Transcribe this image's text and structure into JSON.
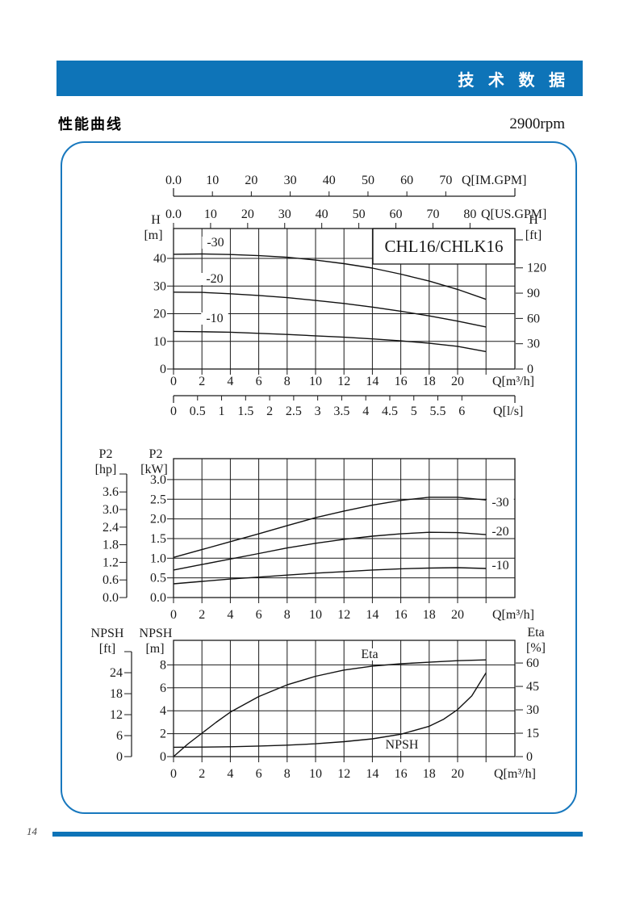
{
  "page": {
    "banner_title": "技 术 数 据",
    "section_title": "性能曲线",
    "speed": "2900rpm",
    "page_number": "14"
  },
  "chart_data": [
    {
      "type": "line",
      "title": "CHL16/CHLK16",
      "x_axis": {
        "unit": "Q[m³/h]",
        "ticks": [
          "0",
          "2",
          "4",
          "6",
          "8",
          "10",
          "12",
          "14",
          "16",
          "18",
          "20"
        ],
        "grid": [
          2,
          4,
          6,
          8,
          10,
          12,
          14,
          16,
          18,
          20,
          22
        ],
        "range": [
          0,
          24
        ]
      },
      "y_axis": {
        "name": "H",
        "unit": "[m]",
        "ticks": [
          "0",
          "10",
          "20",
          "30",
          "40"
        ],
        "grid": [
          10,
          20,
          30,
          40
        ],
        "range": [
          0,
          50.8
        ]
      },
      "right_axis": {
        "name": "H",
        "unit": "[ft]",
        "ticks": [
          "0",
          "30",
          "60",
          "90",
          "120"
        ]
      },
      "im_axis": {
        "unit": "Q[IM.GPM]",
        "ticks": [
          "0.0",
          "10",
          "20",
          "30",
          "40",
          "50",
          "60",
          "70"
        ]
      },
      "us_axis": {
        "unit": "Q[US.GPM]",
        "ticks": [
          "0.0",
          "10",
          "20",
          "30",
          "40",
          "50",
          "60",
          "70",
          "80"
        ]
      },
      "ls_axis": {
        "unit": "Q[l/s]",
        "ticks": [
          "0",
          "0.5",
          "1",
          "1.5",
          "2",
          "2.5",
          "3",
          "3.5",
          "4",
          "4.5",
          "5",
          "5.5",
          "6"
        ]
      },
      "series": [
        {
          "name": "-30",
          "points": [
            [
              0,
              41.5
            ],
            [
              2,
              41.6
            ],
            [
              4,
              41.4
            ],
            [
              6,
              41.0
            ],
            [
              8,
              40.4
            ],
            [
              10,
              39.4
            ],
            [
              12,
              38.1
            ],
            [
              14,
              36.5
            ],
            [
              16,
              34.3
            ],
            [
              18,
              31.8
            ],
            [
              20,
              28.8
            ],
            [
              22,
              25.2
            ]
          ]
        },
        {
          "name": "-20",
          "points": [
            [
              0,
              27.8
            ],
            [
              2,
              27.7
            ],
            [
              4,
              27.2
            ],
            [
              6,
              26.6
            ],
            [
              8,
              25.8
            ],
            [
              10,
              24.8
            ],
            [
              12,
              23.7
            ],
            [
              14,
              22.4
            ],
            [
              16,
              20.9
            ],
            [
              18,
              19.2
            ],
            [
              20,
              17.3
            ],
            [
              22,
              15.2
            ]
          ]
        },
        {
          "name": "-10",
          "points": [
            [
              0,
              13.6
            ],
            [
              2,
              13.5
            ],
            [
              4,
              13.3
            ],
            [
              6,
              12.9
            ],
            [
              8,
              12.5
            ],
            [
              10,
              12.0
            ],
            [
              12,
              11.5
            ],
            [
              14,
              10.9
            ],
            [
              16,
              10.2
            ],
            [
              18,
              9.3
            ],
            [
              20,
              8.2
            ],
            [
              22,
              6.3
            ]
          ]
        }
      ]
    },
    {
      "type": "line",
      "x_axis": {
        "unit": "Q[m³/h]",
        "ticks": [
          "0",
          "2",
          "4",
          "6",
          "8",
          "10",
          "12",
          "14",
          "16",
          "18",
          "20"
        ],
        "grid": [
          2,
          4,
          6,
          8,
          10,
          12,
          14,
          16,
          18,
          20,
          22
        ],
        "range": [
          0,
          24
        ]
      },
      "y_axis": {
        "name": "P2",
        "unit": "[kW]",
        "ticks": [
          "0.0",
          "0.5",
          "1.0",
          "1.5",
          "2.0",
          "2.5",
          "3.0"
        ],
        "grid": [
          0.5,
          1,
          1.5,
          2,
          2.5,
          3
        ],
        "range": [
          0,
          3.53
        ]
      },
      "hp_axis": {
        "name": "P2",
        "unit": "[hp]",
        "ticks": [
          "0.0",
          "0.6",
          "1.2",
          "1.8",
          "2.4",
          "3.0",
          "3.6"
        ]
      },
      "series": [
        {
          "name": "-30",
          "points": [
            [
              0,
              1.02
            ],
            [
              2,
              1.22
            ],
            [
              4,
              1.42
            ],
            [
              6,
              1.62
            ],
            [
              8,
              1.83
            ],
            [
              10,
              2.03
            ],
            [
              12,
              2.2
            ],
            [
              14,
              2.35
            ],
            [
              16,
              2.47
            ],
            [
              18,
              2.55
            ],
            [
              20,
              2.55
            ],
            [
              22,
              2.48
            ]
          ]
        },
        {
          "name": "-20",
          "points": [
            [
              0,
              0.7
            ],
            [
              2,
              0.84
            ],
            [
              4,
              0.98
            ],
            [
              6,
              1.12
            ],
            [
              8,
              1.26
            ],
            [
              10,
              1.38
            ],
            [
              12,
              1.48
            ],
            [
              14,
              1.56
            ],
            [
              16,
              1.62
            ],
            [
              18,
              1.66
            ],
            [
              20,
              1.65
            ],
            [
              22,
              1.6
            ]
          ]
        },
        {
          "name": "-10",
          "points": [
            [
              0,
              0.35
            ],
            [
              2,
              0.41
            ],
            [
              4,
              0.47
            ],
            [
              6,
              0.52
            ],
            [
              8,
              0.57
            ],
            [
              10,
              0.62
            ],
            [
              12,
              0.66
            ],
            [
              14,
              0.7
            ],
            [
              16,
              0.73
            ],
            [
              18,
              0.75
            ],
            [
              20,
              0.76
            ],
            [
              22,
              0.74
            ]
          ]
        }
      ]
    },
    {
      "type": "line",
      "x_axis": {
        "unit": "Q[m³/h]",
        "ticks": [
          "0",
          "2",
          "4",
          "6",
          "8",
          "10",
          "12",
          "14",
          "16",
          "18",
          "20"
        ],
        "grid": [
          2,
          4,
          6,
          8,
          10,
          12,
          14,
          16,
          18,
          20,
          22
        ],
        "range": [
          0,
          24
        ]
      },
      "y_axis": {
        "name": "NPSH",
        "unit": "[m]",
        "ticks": [
          "0",
          "2",
          "4",
          "6",
          "8"
        ],
        "grid": [
          2,
          4,
          6,
          8
        ],
        "range": [
          0,
          10.14
        ]
      },
      "ft_axis": {
        "name": "NPSH",
        "unit": "[ft]",
        "ticks": [
          "0",
          "6",
          "12",
          "18",
          "24"
        ]
      },
      "eta_axis": {
        "name": "Eta",
        "unit": "[%]",
        "ticks": [
          "0",
          "15",
          "30",
          "45",
          "60"
        ]
      },
      "series": [
        {
          "name": "Eta",
          "axis": "eta",
          "points": [
            [
              0,
              0
            ],
            [
              1,
              8
            ],
            [
              2,
              15
            ],
            [
              3,
              22
            ],
            [
              4,
              28.5
            ],
            [
              5,
              33.5
            ],
            [
              6,
              38.5
            ],
            [
              8,
              46
            ],
            [
              10,
              51.5
            ],
            [
              12,
              55.5
            ],
            [
              14,
              58
            ],
            [
              16,
              59.5
            ],
            [
              18,
              60.5
            ],
            [
              20,
              61.5
            ],
            [
              22,
              62
            ]
          ]
        },
        {
          "name": "NPSH",
          "axis": "y",
          "points": [
            [
              0,
              0.82
            ],
            [
              2,
              0.83
            ],
            [
              4,
              0.86
            ],
            [
              6,
              0.92
            ],
            [
              8,
              1.0
            ],
            [
              10,
              1.12
            ],
            [
              12,
              1.3
            ],
            [
              14,
              1.55
            ],
            [
              16,
              1.95
            ],
            [
              18,
              2.65
            ],
            [
              19,
              3.25
            ],
            [
              20,
              4.1
            ],
            [
              21,
              5.3
            ],
            [
              22,
              7.3
            ]
          ]
        }
      ]
    }
  ]
}
